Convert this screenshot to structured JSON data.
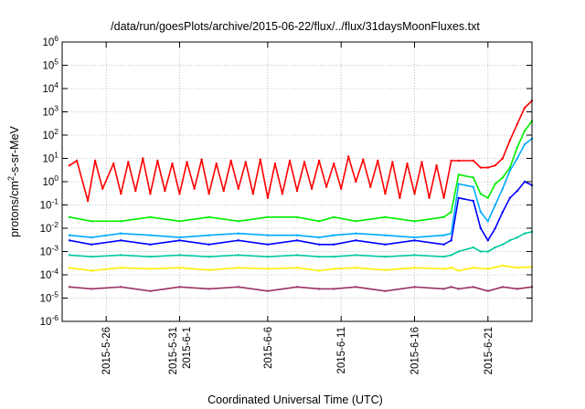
{
  "chart_data": {
    "type": "line",
    "title": "/data/run/goesPlots/archive/2015-06-22/flux/../flux/31daysMoonFluxes.txt",
    "xlabel": "Coordinated Universal Time (UTC)",
    "ylabel": {
      "prefix": "protons/cm",
      "superscript": "2",
      "suffix": "-s-sr-MeV"
    },
    "y_scale": "log",
    "ylim": [
      1e-06,
      1000000.0
    ],
    "xlim": [
      "2015-05-23",
      "2015-06-24"
    ],
    "grid": true,
    "legend": "none",
    "y_ticks": [
      {
        "value": 1e-06,
        "base": "10",
        "exp": "-6"
      },
      {
        "value": 1e-05,
        "base": "10",
        "exp": "-5"
      },
      {
        "value": 0.0001,
        "base": "10",
        "exp": "-4"
      },
      {
        "value": 0.001,
        "base": "10",
        "exp": "-3"
      },
      {
        "value": 0.01,
        "base": "10",
        "exp": "-2"
      },
      {
        "value": 0.1,
        "base": "10",
        "exp": "-1"
      },
      {
        "value": 1.0,
        "base": "10",
        "exp": "0"
      },
      {
        "value": 10.0,
        "base": "10",
        "exp": "1"
      },
      {
        "value": 100.0,
        "base": "10",
        "exp": "2"
      },
      {
        "value": 1000.0,
        "base": "10",
        "exp": "3"
      },
      {
        "value": 10000.0,
        "base": "10",
        "exp": "4"
      },
      {
        "value": 100000.0,
        "base": "10",
        "exp": "5"
      },
      {
        "value": 1000000.0,
        "base": "10",
        "exp": "6"
      }
    ],
    "x_ticks": [
      {
        "date": "2015-05-26",
        "labels": [
          "2015-5-26"
        ]
      },
      {
        "date": "2015-05-31",
        "labels": [
          "2015-5-31",
          "2015-6-1"
        ]
      },
      {
        "date": "2015-06-06",
        "labels": [
          "2015-6-6"
        ]
      },
      {
        "date": "2015-06-11",
        "labels": [
          "2015-6-11"
        ]
      },
      {
        "date": "2015-06-16",
        "labels": [
          "2015-6-16"
        ]
      },
      {
        "date": "2015-06-21",
        "labels": [
          "2015-6-21"
        ]
      }
    ],
    "series": [
      {
        "color": "#ff0000",
        "values": [
          [
            "2015-05-23T12:00",
            5
          ],
          [
            "2015-05-24T00:00",
            8
          ],
          [
            "2015-05-24T18:00",
            0.15
          ],
          [
            "2015-05-25T06:00",
            8
          ],
          [
            "2015-05-25T18:00",
            0.5
          ],
          [
            "2015-05-26T12:00",
            6
          ],
          [
            "2015-05-27T00:00",
            0.3
          ],
          [
            "2015-05-27T12:00",
            7
          ],
          [
            "2015-05-28T00:00",
            0.4
          ],
          [
            "2015-05-28T12:00",
            10
          ],
          [
            "2015-05-29T00:00",
            0.3
          ],
          [
            "2015-05-29T12:00",
            8
          ],
          [
            "2015-05-30T00:00",
            0.4
          ],
          [
            "2015-05-30T12:00",
            6
          ],
          [
            "2015-05-31T00:00",
            0.3
          ],
          [
            "2015-05-31T12:00",
            7
          ],
          [
            "2015-06-01T00:00",
            0.5
          ],
          [
            "2015-06-01T12:00",
            9
          ],
          [
            "2015-06-02T00:00",
            0.3
          ],
          [
            "2015-06-02T12:00",
            6
          ],
          [
            "2015-06-03T00:00",
            0.4
          ],
          [
            "2015-06-03T12:00",
            8
          ],
          [
            "2015-06-04T00:00",
            0.5
          ],
          [
            "2015-06-04T12:00",
            7
          ],
          [
            "2015-06-05T00:00",
            0.3
          ],
          [
            "2015-06-05T12:00",
            9
          ],
          [
            "2015-06-06T00:00",
            0.2
          ],
          [
            "2015-06-06T12:00",
            6
          ],
          [
            "2015-06-07T00:00",
            0.3
          ],
          [
            "2015-06-07T12:00",
            8
          ],
          [
            "2015-06-08T00:00",
            0.4
          ],
          [
            "2015-06-08T12:00",
            7
          ],
          [
            "2015-06-09T00:00",
            0.5
          ],
          [
            "2015-06-09T12:00",
            8
          ],
          [
            "2015-06-10T00:00",
            0.6
          ],
          [
            "2015-06-10T12:00",
            6
          ],
          [
            "2015-06-11T00:00",
            0.5
          ],
          [
            "2015-06-11T12:00",
            12
          ],
          [
            "2015-06-12T00:00",
            1
          ],
          [
            "2015-06-12T12:00",
            9
          ],
          [
            "2015-06-13T00:00",
            0.6
          ],
          [
            "2015-06-13T12:00",
            8
          ],
          [
            "2015-06-14T00:00",
            0.3
          ],
          [
            "2015-06-14T12:00",
            7
          ],
          [
            "2015-06-15T00:00",
            0.2
          ],
          [
            "2015-06-15T12:00",
            6
          ],
          [
            "2015-06-16T00:00",
            0.3
          ],
          [
            "2015-06-16T12:00",
            7
          ],
          [
            "2015-06-17T00:00",
            0.2
          ],
          [
            "2015-06-17T12:00",
            5
          ],
          [
            "2015-06-18T00:00",
            0.2
          ],
          [
            "2015-06-18T12:00",
            8
          ],
          [
            "2015-06-19T00:00",
            8
          ],
          [
            "2015-06-20T00:00",
            8
          ],
          [
            "2015-06-20T12:00",
            4
          ],
          [
            "2015-06-21T00:00",
            4
          ],
          [
            "2015-06-21T12:00",
            5
          ],
          [
            "2015-06-22T00:00",
            10
          ],
          [
            "2015-06-22T12:00",
            60
          ],
          [
            "2015-06-23T00:00",
            300
          ],
          [
            "2015-06-23T12:00",
            1500
          ],
          [
            "2015-06-24T00:00",
            3000
          ]
        ]
      },
      {
        "color": "#00ee00",
        "values": [
          [
            "2015-05-23T12:00",
            0.03
          ],
          [
            "2015-05-25T00:00",
            0.02
          ],
          [
            "2015-05-27T00:00",
            0.02
          ],
          [
            "2015-05-29T00:00",
            0.03
          ],
          [
            "2015-05-31T00:00",
            0.02
          ],
          [
            "2015-06-02T00:00",
            0.03
          ],
          [
            "2015-06-04T00:00",
            0.02
          ],
          [
            "2015-06-06T00:00",
            0.03
          ],
          [
            "2015-06-08T00:00",
            0.03
          ],
          [
            "2015-06-09T12:00",
            0.02
          ],
          [
            "2015-06-10T12:00",
            0.03
          ],
          [
            "2015-06-12T00:00",
            0.02
          ],
          [
            "2015-06-14T00:00",
            0.03
          ],
          [
            "2015-06-16T00:00",
            0.02
          ],
          [
            "2015-06-18T00:00",
            0.03
          ],
          [
            "2015-06-18T12:00",
            0.05
          ],
          [
            "2015-06-19T00:00",
            2
          ],
          [
            "2015-06-20T00:00",
            1.5
          ],
          [
            "2015-06-20T12:00",
            0.3
          ],
          [
            "2015-06-21T00:00",
            0.2
          ],
          [
            "2015-06-21T12:00",
            0.8
          ],
          [
            "2015-06-22T00:00",
            1.5
          ],
          [
            "2015-06-22T12:00",
            4
          ],
          [
            "2015-06-23T00:00",
            30
          ],
          [
            "2015-06-23T12:00",
            150
          ],
          [
            "2015-06-24T00:00",
            400
          ]
        ]
      },
      {
        "color": "#0000ff",
        "values": [
          [
            "2015-05-23T12:00",
            0.003
          ],
          [
            "2015-05-25T00:00",
            0.002
          ],
          [
            "2015-05-27T00:00",
            0.003
          ],
          [
            "2015-05-29T00:00",
            0.002
          ],
          [
            "2015-05-31T00:00",
            0.003
          ],
          [
            "2015-06-02T00:00",
            0.002
          ],
          [
            "2015-06-04T00:00",
            0.003
          ],
          [
            "2015-06-06T00:00",
            0.002
          ],
          [
            "2015-06-08T00:00",
            0.003
          ],
          [
            "2015-06-09T12:00",
            0.002
          ],
          [
            "2015-06-10T12:00",
            0.002
          ],
          [
            "2015-06-12T00:00",
            0.003
          ],
          [
            "2015-06-14T00:00",
            0.002
          ],
          [
            "2015-06-16T00:00",
            0.003
          ],
          [
            "2015-06-18T00:00",
            0.002
          ],
          [
            "2015-06-18T12:00",
            0.003
          ],
          [
            "2015-06-19T00:00",
            0.2
          ],
          [
            "2015-06-20T00:00",
            0.15
          ],
          [
            "2015-06-20T12:00",
            0.01
          ],
          [
            "2015-06-21T00:00",
            0.003
          ],
          [
            "2015-06-21T12:00",
            0.01
          ],
          [
            "2015-06-22T00:00",
            0.05
          ],
          [
            "2015-06-22T12:00",
            0.2
          ],
          [
            "2015-06-23T00:00",
            0.4
          ],
          [
            "2015-06-23T12:00",
            1
          ],
          [
            "2015-06-24T00:00",
            0.7
          ]
        ]
      },
      {
        "color": "#00aaff",
        "values": [
          [
            "2015-05-23T12:00",
            0.005
          ],
          [
            "2015-05-25T00:00",
            0.004
          ],
          [
            "2015-05-27T00:00",
            0.006
          ],
          [
            "2015-05-29T00:00",
            0.005
          ],
          [
            "2015-05-31T00:00",
            0.004
          ],
          [
            "2015-06-02T00:00",
            0.005
          ],
          [
            "2015-06-04T00:00",
            0.006
          ],
          [
            "2015-06-06T00:00",
            0.005
          ],
          [
            "2015-06-08T00:00",
            0.005
          ],
          [
            "2015-06-09T12:00",
            0.004
          ],
          [
            "2015-06-10T12:00",
            0.005
          ],
          [
            "2015-06-12T00:00",
            0.006
          ],
          [
            "2015-06-14T00:00",
            0.005
          ],
          [
            "2015-06-16T00:00",
            0.004
          ],
          [
            "2015-06-18T00:00",
            0.005
          ],
          [
            "2015-06-18T12:00",
            0.006
          ],
          [
            "2015-06-19T00:00",
            0.8
          ],
          [
            "2015-06-20T00:00",
            0.6
          ],
          [
            "2015-06-20T12:00",
            0.05
          ],
          [
            "2015-06-21T00:00",
            0.02
          ],
          [
            "2015-06-21T12:00",
            0.1
          ],
          [
            "2015-06-22T00:00",
            0.5
          ],
          [
            "2015-06-22T12:00",
            3
          ],
          [
            "2015-06-23T00:00",
            10
          ],
          [
            "2015-06-23T12:00",
            40
          ],
          [
            "2015-06-24T00:00",
            70
          ]
        ]
      },
      {
        "color": "#00c8a0",
        "values": [
          [
            "2015-05-23T12:00",
            0.0007
          ],
          [
            "2015-05-25T00:00",
            0.0006
          ],
          [
            "2015-05-27T00:00",
            0.0007
          ],
          [
            "2015-05-29T00:00",
            0.0006
          ],
          [
            "2015-05-31T00:00",
            0.0007
          ],
          [
            "2015-06-02T00:00",
            0.0006
          ],
          [
            "2015-06-04T00:00",
            0.0007
          ],
          [
            "2015-06-06T00:00",
            0.0006
          ],
          [
            "2015-06-08T00:00",
            0.0007
          ],
          [
            "2015-06-09T12:00",
            0.0006
          ],
          [
            "2015-06-10T12:00",
            0.0006
          ],
          [
            "2015-06-12T00:00",
            0.0007
          ],
          [
            "2015-06-14T00:00",
            0.0006
          ],
          [
            "2015-06-16T00:00",
            0.0007
          ],
          [
            "2015-06-18T00:00",
            0.0006
          ],
          [
            "2015-06-18T12:00",
            0.0007
          ],
          [
            "2015-06-19T00:00",
            0.001
          ],
          [
            "2015-06-20T00:00",
            0.0015
          ],
          [
            "2015-06-20T12:00",
            0.001
          ],
          [
            "2015-06-21T00:00",
            0.001
          ],
          [
            "2015-06-21T12:00",
            0.0015
          ],
          [
            "2015-06-22T00:00",
            0.002
          ],
          [
            "2015-06-22T12:00",
            0.003
          ],
          [
            "2015-06-23T00:00",
            0.004
          ],
          [
            "2015-06-23T12:00",
            0.006
          ],
          [
            "2015-06-24T00:00",
            0.007
          ]
        ]
      },
      {
        "color": "#ffee00",
        "values": [
          [
            "2015-05-23T12:00",
            0.0002
          ],
          [
            "2015-05-25T00:00",
            0.00015
          ],
          [
            "2015-05-27T00:00",
            0.0002
          ],
          [
            "2015-05-29T00:00",
            0.00018
          ],
          [
            "2015-05-31T00:00",
            0.0002
          ],
          [
            "2015-06-02T00:00",
            0.00016
          ],
          [
            "2015-06-04T00:00",
            0.0002
          ],
          [
            "2015-06-06T00:00",
            0.00018
          ],
          [
            "2015-06-08T00:00",
            0.0002
          ],
          [
            "2015-06-09T12:00",
            0.00015
          ],
          [
            "2015-06-10T12:00",
            0.00018
          ],
          [
            "2015-06-12T00:00",
            0.0002
          ],
          [
            "2015-06-14T00:00",
            0.00016
          ],
          [
            "2015-06-16T00:00",
            0.0002
          ],
          [
            "2015-06-18T00:00",
            0.00018
          ],
          [
            "2015-06-18T12:00",
            0.0002
          ],
          [
            "2015-06-19T00:00",
            0.00015
          ],
          [
            "2015-06-20T00:00",
            0.0002
          ],
          [
            "2015-06-21T00:00",
            0.00018
          ],
          [
            "2015-06-22T00:00",
            0.00025
          ],
          [
            "2015-06-23T00:00",
            0.0002
          ],
          [
            "2015-06-24T00:00",
            0.00022
          ]
        ]
      },
      {
        "color": "#993366",
        "values": [
          [
            "2015-05-23T12:00",
            3e-05
          ],
          [
            "2015-05-25T00:00",
            2.5e-05
          ],
          [
            "2015-05-27T00:00",
            3e-05
          ],
          [
            "2015-05-29T00:00",
            2e-05
          ],
          [
            "2015-05-31T00:00",
            3e-05
          ],
          [
            "2015-06-02T00:00",
            2.5e-05
          ],
          [
            "2015-06-04T00:00",
            3e-05
          ],
          [
            "2015-06-06T00:00",
            2e-05
          ],
          [
            "2015-06-08T00:00",
            3e-05
          ],
          [
            "2015-06-09T12:00",
            2.5e-05
          ],
          [
            "2015-06-10T12:00",
            2.5e-05
          ],
          [
            "2015-06-12T00:00",
            3e-05
          ],
          [
            "2015-06-14T00:00",
            2e-05
          ],
          [
            "2015-06-16T00:00",
            3e-05
          ],
          [
            "2015-06-18T00:00",
            2.5e-05
          ],
          [
            "2015-06-18T12:00",
            3e-05
          ],
          [
            "2015-06-19T00:00",
            2.5e-05
          ],
          [
            "2015-06-20T00:00",
            3e-05
          ],
          [
            "2015-06-21T00:00",
            2e-05
          ],
          [
            "2015-06-22T00:00",
            3e-05
          ],
          [
            "2015-06-23T00:00",
            2.5e-05
          ],
          [
            "2015-06-24T00:00",
            3e-05
          ]
        ]
      }
    ]
  }
}
